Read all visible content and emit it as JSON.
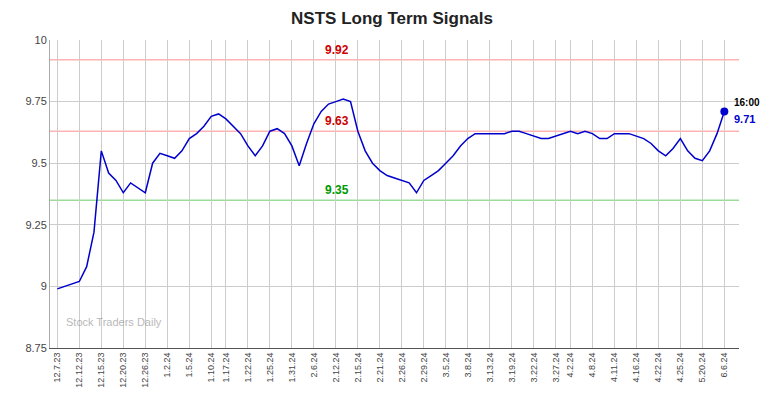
{
  "chart_data": {
    "type": "line",
    "title": "NSTS Long Term Signals",
    "color": "#0000cc",
    "grid": true,
    "ylim": [
      8.75,
      10
    ],
    "yticks": [
      8.75,
      9,
      9.25,
      9.5,
      9.75,
      10
    ],
    "watermark": "Stock Traders Daily",
    "annotations": [
      {
        "text": "9.92",
        "y": 9.92,
        "color": "#cc0000",
        "line_color": "#ffb3b3"
      },
      {
        "text": "9.63",
        "y": 9.63,
        "color": "#cc0000",
        "line_color": "#ffb3b3"
      },
      {
        "text": "9.35",
        "y": 9.35,
        "color": "#009900",
        "line_color": "#99dd99"
      }
    ],
    "end_label": {
      "time": "16:00",
      "value": "9.71",
      "color": "#0000cc"
    },
    "categories": [
      "12.7.23",
      null,
      null,
      "12.12.23",
      null,
      null,
      "12.15.23",
      null,
      null,
      "12.20.23",
      null,
      null,
      "12.26.23",
      null,
      null,
      "1.2.24",
      null,
      null,
      "1.5.24",
      null,
      null,
      "1.10.24",
      null,
      "1.17.24",
      null,
      null,
      "1.22.24",
      null,
      null,
      "1.25.24",
      null,
      null,
      "1.31.24",
      null,
      null,
      "2.6.24",
      null,
      null,
      "2.12.24",
      null,
      null,
      "2.15.24",
      null,
      null,
      "2.21.24",
      null,
      null,
      "2.26.24",
      null,
      null,
      "2.29.24",
      null,
      null,
      "3.5.24",
      null,
      null,
      "3.8.24",
      null,
      null,
      "3.13.24",
      null,
      null,
      "3.19.24",
      null,
      null,
      "3.22.24",
      null,
      null,
      "3.27.24",
      null,
      "4.2.24",
      null,
      null,
      "4.8.24",
      null,
      null,
      "4.11.24",
      null,
      null,
      "4.16.24",
      null,
      null,
      "4.22.24",
      null,
      null,
      "4.25.24",
      null,
      null,
      "5.20.24",
      null,
      null,
      "6.6.24"
    ],
    "values": [
      8.99,
      9.0,
      9.01,
      9.02,
      9.08,
      9.22,
      9.55,
      9.46,
      9.43,
      9.38,
      9.42,
      9.4,
      9.38,
      9.5,
      9.54,
      9.53,
      9.52,
      9.55,
      9.6,
      9.62,
      9.65,
      9.69,
      9.7,
      9.68,
      9.65,
      9.62,
      9.57,
      9.53,
      9.57,
      9.63,
      9.64,
      9.62,
      9.57,
      9.49,
      9.58,
      9.66,
      9.71,
      9.74,
      9.75,
      9.76,
      9.75,
      9.63,
      9.55,
      9.5,
      9.47,
      9.45,
      9.44,
      9.43,
      9.42,
      9.38,
      9.43,
      9.45,
      9.47,
      9.5,
      9.53,
      9.57,
      9.6,
      9.62,
      9.62,
      9.62,
      9.62,
      9.62,
      9.63,
      9.63,
      9.62,
      9.61,
      9.6,
      9.6,
      9.61,
      9.62,
      9.63,
      9.62,
      9.63,
      9.62,
      9.6,
      9.6,
      9.62,
      9.62,
      9.62,
      9.61,
      9.6,
      9.58,
      9.55,
      9.53,
      9.56,
      9.6,
      9.55,
      9.52,
      9.51,
      9.55,
      9.62,
      9.71
    ]
  }
}
